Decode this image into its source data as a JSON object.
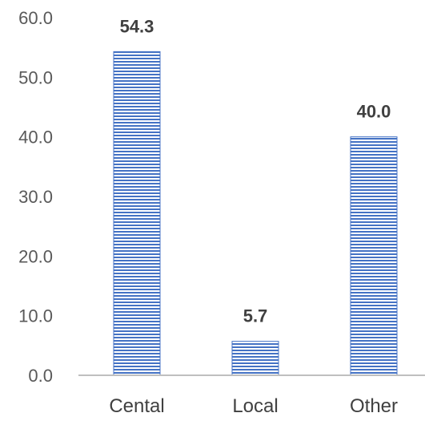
{
  "chart_data": {
    "type": "bar",
    "categories": [
      "Cental",
      "Local",
      "Other"
    ],
    "values": [
      54.3,
      5.7,
      40.0
    ],
    "data_labels": [
      "54.3",
      "5.7",
      "40.0"
    ],
    "yticks": [
      "0.0",
      "10.0",
      "20.0",
      "30.0",
      "40.0",
      "50.0",
      "60.0"
    ],
    "ylim": [
      0,
      60
    ],
    "grid": false,
    "legend": "none",
    "bar_color": "#4472c4",
    "bar_pattern": "horizontal-stripes"
  }
}
